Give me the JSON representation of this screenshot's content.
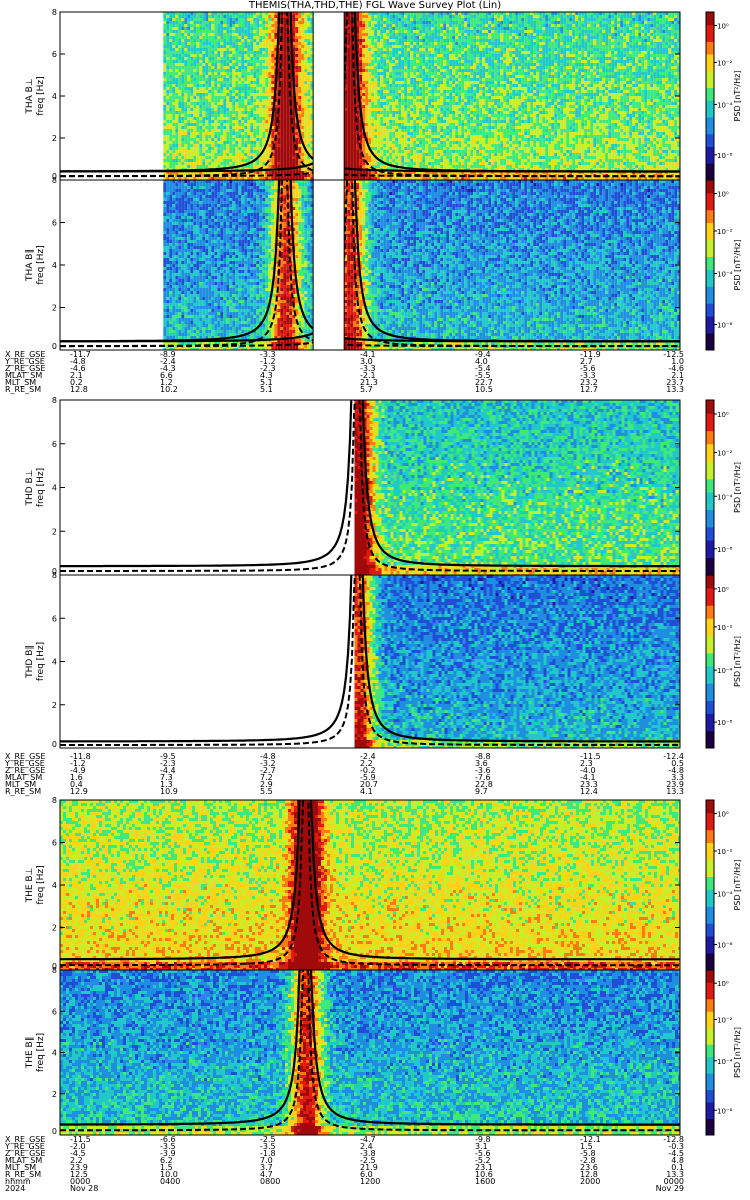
{
  "title": "THEMIS(THA,THD,THE) FGL Wave Survey Plot (Lin)",
  "colors": {
    "cmap": [
      "#1a0040",
      "#1e1aa8",
      "#1f4fd6",
      "#1f8ee0",
      "#20c8c8",
      "#3ee87a",
      "#c8ee2a",
      "#ffd21a",
      "#ff7a10",
      "#e01a10",
      "#a00a0a"
    ],
    "curve": "#000000",
    "frame": "#000000"
  },
  "chart_data": [
    {
      "type": "heatmap",
      "probe": "THA",
      "component": "B⊥",
      "ylabel_top": "THA B⊥",
      "ylabel_bottom": "freq [Hz]",
      "zlabel": "PSD [nT²/Hz]",
      "yticks": [
        "0",
        "2",
        "4",
        "6",
        "8"
      ],
      "cbar_ticks": [
        "10⁻⁸",
        "10⁻⁴",
        "10⁻²",
        "10⁰"
      ],
      "ylim": [
        0,
        8
      ],
      "zlim": [
        -9,
        1
      ],
      "log_z": true,
      "time_range_hours": [
        0,
        24
      ],
      "data_hours": [
        [
          4.0,
          9.8
        ],
        [
          11.0,
          24.0
        ]
      ],
      "gap_hours": [
        [
          9.8,
          11.0
        ]
      ],
      "level": 0.45,
      "perigee_hours": [
        8.7,
        11.2
      ],
      "fce_floor_hz": 0.4
    },
    {
      "type": "heatmap",
      "probe": "THA",
      "component": "B∥",
      "ylabel_top": "THA B∥",
      "ylabel_bottom": "freq [Hz]",
      "zlabel": "PSD [nT²/Hz]",
      "yticks": [
        "0",
        "2",
        "4",
        "6",
        "8"
      ],
      "cbar_ticks": [
        "10⁻⁸",
        "10⁻⁴",
        "10⁻²",
        "10⁰"
      ],
      "ylim": [
        0,
        8
      ],
      "zlim": [
        -9,
        1
      ],
      "log_z": true,
      "time_range_hours": [
        0,
        24
      ],
      "data_hours": [
        [
          4.0,
          9.8
        ],
        [
          11.0,
          24.0
        ]
      ],
      "gap_hours": [
        [
          9.8,
          11.0
        ]
      ],
      "level": 0.28,
      "perigee_hours": [
        8.7,
        11.2
      ],
      "fce_floor_hz": 0.4
    },
    {
      "type": "heatmap",
      "probe": "THD",
      "component": "B⊥",
      "ylabel_top": "THD B⊥",
      "ylabel_bottom": "freq [Hz]",
      "zlabel": "PSD [nT²/Hz]",
      "yticks": [
        "0",
        "2",
        "4",
        "6",
        "8"
      ],
      "cbar_ticks": [
        "10⁻⁸",
        "10⁻⁴",
        "10⁻²",
        "10⁰"
      ],
      "ylim": [
        0,
        8
      ],
      "zlim": [
        -9,
        1
      ],
      "log_z": true,
      "time_range_hours": [
        0,
        24
      ],
      "data_hours": [
        [
          11.4,
          24.0
        ]
      ],
      "gap_hours": [],
      "level": 0.4,
      "perigee_hours": [
        11.5
      ],
      "fce_floor_hz": 0.4
    },
    {
      "type": "heatmap",
      "probe": "THD",
      "component": "B∥",
      "ylabel_top": "THD B∥",
      "ylabel_bottom": "freq [Hz]",
      "zlabel": "PSD [nT²/Hz]",
      "yticks": [
        "0",
        "2",
        "4",
        "6",
        "8"
      ],
      "cbar_ticks": [
        "10⁻⁸",
        "10⁻⁴",
        "10⁻²",
        "10⁰"
      ],
      "ylim": [
        0,
        8
      ],
      "zlim": [
        -9,
        1
      ],
      "log_z": true,
      "time_range_hours": [
        0,
        24
      ],
      "data_hours": [
        [
          11.4,
          24.0
        ]
      ],
      "gap_hours": [],
      "level": 0.27,
      "perigee_hours": [
        11.5
      ],
      "fce_floor_hz": 0.3
    },
    {
      "type": "heatmap",
      "probe": "THE",
      "component": "B⊥",
      "ylabel_top": "THE B⊥",
      "ylabel_bottom": "freq [Hz]",
      "zlabel": "PSD [nT²/Hz]",
      "yticks": [
        "0",
        "2",
        "4",
        "6",
        "8"
      ],
      "cbar_ticks": [
        "10⁻⁸",
        "10⁻⁴",
        "10⁻²",
        "10⁰"
      ],
      "ylim": [
        0,
        8
      ],
      "zlim": [
        -9,
        1
      ],
      "log_z": true,
      "time_range_hours": [
        0,
        24
      ],
      "data_hours": [
        [
          0.0,
          24.0
        ]
      ],
      "gap_hours": [],
      "level": 0.56,
      "perigee_hours": [
        9.5
      ],
      "fce_floor_hz": 0.5
    },
    {
      "type": "heatmap",
      "probe": "THE",
      "component": "B∥",
      "ylabel_top": "THE B∥",
      "ylabel_bottom": "freq [Hz]",
      "zlabel": "PSD [nT²/Hz]",
      "yticks": [
        "0",
        "2",
        "4",
        "6",
        "8"
      ],
      "cbar_ticks": [
        "10⁻⁸",
        "10⁻⁴",
        "10⁻²",
        "10⁰"
      ],
      "ylim": [
        0,
        8
      ],
      "zlim": [
        -9,
        1
      ],
      "log_z": true,
      "time_range_hours": [
        0,
        24
      ],
      "data_hours": [
        [
          0.0,
          24.0
        ]
      ],
      "gap_hours": [],
      "level": 0.3,
      "perigee_hours": [
        9.5
      ],
      "fce_floor_hz": 0.5
    }
  ],
  "ephemeris_blocks": [
    {
      "probe": "THA",
      "rows": [
        {
          "label": "X_RE_GSE",
          "values": [
            "-11.7",
            "-8.9",
            "-3.3",
            "-4.1",
            "-9.4",
            "-11.9",
            "-12.5"
          ]
        },
        {
          "label": "Y_RE_GSE",
          "values": [
            "-4.8",
            "-2.4",
            "-1.2",
            "3.0",
            "4.0",
            "2.7",
            "1.0"
          ]
        },
        {
          "label": "Z_RE_GSE",
          "values": [
            "-4.6",
            "-4.3",
            "-2.3",
            "-3.3",
            "-5.4",
            "-5.6",
            "-4.6"
          ]
        },
        {
          "label": "MLAT_SM",
          "values": [
            "2.1",
            "6.6",
            "4.3",
            "-2.1",
            "-5.5",
            "-3.3",
            "2.1"
          ]
        },
        {
          "label": "MLT_SM",
          "values": [
            "0.2",
            "1.2",
            "5.1",
            "21.3",
            "22.7",
            "23.2",
            "23.7"
          ]
        },
        {
          "label": "R_RE_SM",
          "values": [
            "12.8",
            "10.2",
            "5.1",
            "5.7",
            "10.5",
            "12.7",
            "13.3"
          ]
        }
      ]
    },
    {
      "probe": "THD",
      "rows": [
        {
          "label": "X_RE_GSE",
          "values": [
            "-11.8",
            "-9.5",
            "-4.8",
            "-2.4",
            "-8.8",
            "-11.5",
            "-12.4"
          ]
        },
        {
          "label": "Y_RE_GSE",
          "values": [
            "-1.2",
            "-2.3",
            "-3.2",
            "2.2",
            "3.6",
            "2.3",
            "0.5"
          ]
        },
        {
          "label": "Z_RE_GSE",
          "values": [
            "-4.9",
            "-4.4",
            "-2.7",
            "-0.2",
            "-3.6",
            "-4.0",
            "-4.8"
          ]
        },
        {
          "label": "MLAT_SM",
          "values": [
            "1.6",
            "7.3",
            "7.2",
            "-5.9",
            "-7.6",
            "-4.1",
            "3.3"
          ]
        },
        {
          "label": "MLT_SM",
          "values": [
            "0.4",
            "1.3",
            "2.9",
            "20.7",
            "22.8",
            "23.3",
            "23.9"
          ]
        },
        {
          "label": "R_RE_SM",
          "values": [
            "12.9",
            "10.9",
            "5.5",
            "4.1",
            "9.7",
            "12.4",
            "13.3"
          ]
        }
      ]
    },
    {
      "probe": "THE",
      "rows": [
        {
          "label": "X_RE_GSE",
          "values": [
            "-11.5",
            "-6.6",
            "-2.5",
            "-4.7",
            "-9.8",
            "-12.1",
            "-12.8"
          ]
        },
        {
          "label": "Y_RE_GSE",
          "values": [
            "-2.0",
            "-3.5",
            "-3.5",
            "2.4",
            "3.1",
            "1.5",
            "-0.3"
          ]
        },
        {
          "label": "Z_RE_GSE",
          "values": [
            "-4.5",
            "-3.9",
            "-1.8",
            "-3.8",
            "-5.6",
            "-5.8",
            "-4.5"
          ]
        },
        {
          "label": "MLAT_SM",
          "values": [
            "2.2",
            "6.2",
            "7.0",
            "-2.5",
            "-5.2",
            "-2.8",
            "4.8"
          ]
        },
        {
          "label": "MLT_SM",
          "values": [
            "23.9",
            "1.5",
            "3.7",
            "21.9",
            "23.1",
            "23.6",
            "0.1"
          ]
        },
        {
          "label": "R_RE_SM",
          "values": [
            "12.5",
            "10.0",
            "4.7",
            "6.0",
            "10.6",
            "12.8",
            "13.3"
          ]
        },
        {
          "label": "hhmm",
          "values": [
            "0000",
            "0400",
            "0800",
            "1200",
            "1600",
            "2000",
            "0000"
          ]
        },
        {
          "label": "2024",
          "values": [
            "Nov 28",
            "",
            "",
            "",
            "",
            "",
            "Nov 29"
          ]
        }
      ]
    }
  ]
}
